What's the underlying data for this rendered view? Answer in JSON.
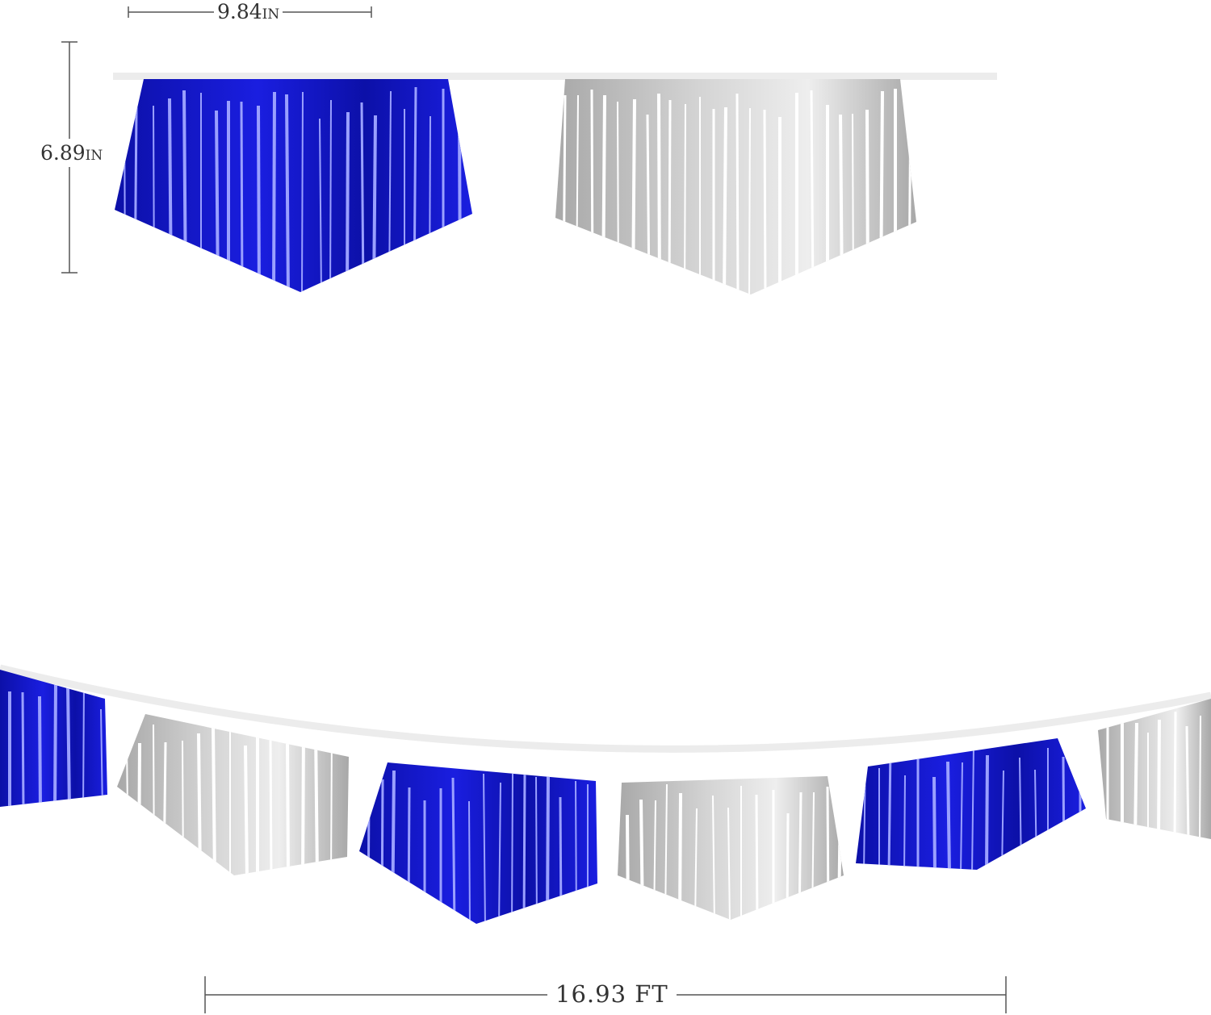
{
  "dimensions": {
    "width_value": "9.84",
    "width_unit": "IN",
    "height_value": "6.89",
    "height_unit": "IN",
    "length_label": "16.93 FT"
  },
  "colors": {
    "blue_foil": "#1a1ee0",
    "blue_dark": "#0c10a8",
    "silver_foil": "#d4d4d4",
    "silver_dark": "#a8a8a8",
    "string": "#ececec",
    "dimension_line": "#555555"
  },
  "pennant_sequence": [
    "blue",
    "silver",
    "blue",
    "silver",
    "blue",
    "silver"
  ]
}
